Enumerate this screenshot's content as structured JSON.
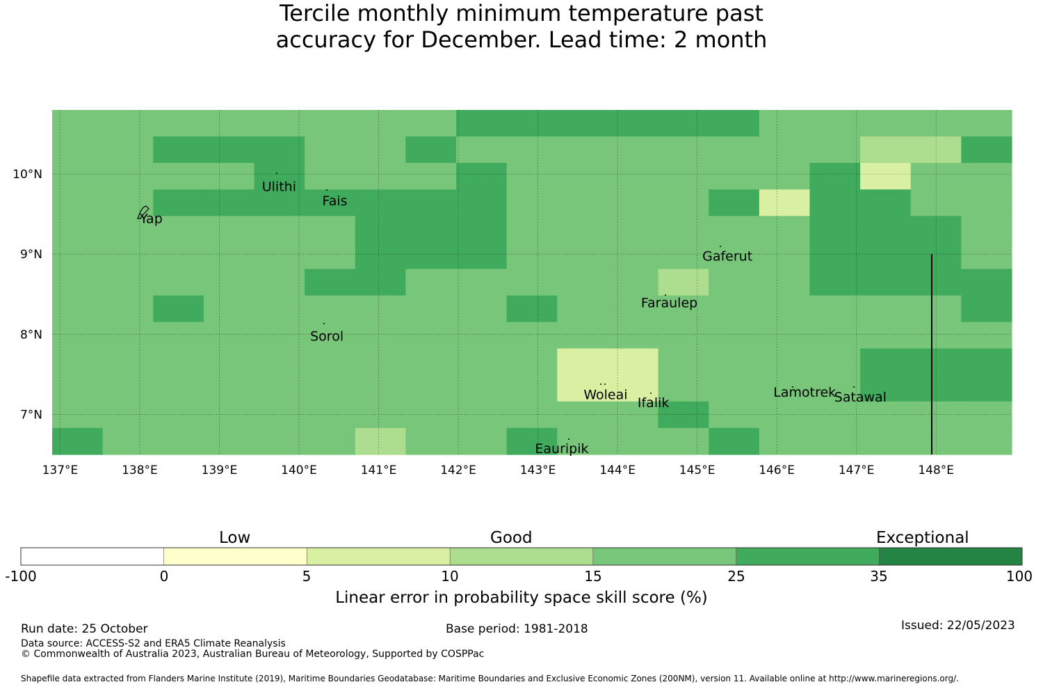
{
  "title": {
    "line1": "Tercile monthly minimum temperature past",
    "line2": "accuracy for December. Lead time: 2 month"
  },
  "map": {
    "lon_labels": [
      "137°E",
      "138°E",
      "139°E",
      "140°E",
      "141°E",
      "142°E",
      "143°E",
      "144°E",
      "145°E",
      "146°E",
      "147°E",
      "148°E"
    ],
    "lat_labels": [
      "10°N",
      "9°N",
      "8°N",
      "7°N"
    ],
    "places": [
      {
        "name": "Yap"
      },
      {
        "name": "Ulithi"
      },
      {
        "name": "Fais"
      },
      {
        "name": "Gaferut"
      },
      {
        "name": "Faraulep"
      },
      {
        "name": "Sorol"
      },
      {
        "name": "Woleai"
      },
      {
        "name": "Ifalik"
      },
      {
        "name": "Lamotrek"
      },
      {
        "name": "Satawal"
      },
      {
        "name": "Eauripik"
      }
    ],
    "colors": {
      "c0": "#ffffcc",
      "c1": "#d9f0a3",
      "c2": "#addd8e",
      "c3": "#78c679",
      "c4": "#41ab5d",
      "c5": "#238443"
    },
    "grid_rows": [
      "3333333344444433333",
      "3344433433333333224",
      "3333433343333334133",
      "3344444443333414433",
      "3333334443333334443",
      "3333334443333334443",
      "3333344333332334444",
      "3343333334333333334",
      "3333333333333333333",
      "3333333333113333444",
      "3333333333113333444",
      "3333333333334333333",
      "4333332334333433333"
    ]
  },
  "colorbar": {
    "categories": [
      "Low",
      "Good",
      "Exceptional"
    ],
    "ticks": [
      "-100",
      "0",
      "5",
      "10",
      "15",
      "25",
      "35",
      "100"
    ],
    "colors": [
      "#ffffff",
      "#ffffcc",
      "#d9f0a3",
      "#addd8e",
      "#78c679",
      "#41ab5d",
      "#238443"
    ],
    "title": "Linear error in probability space skill score (%)"
  },
  "footer": {
    "run_date": "Run date: 25 October",
    "base_period": "Base period: 1981-2018",
    "issued": "Issued: 22/05/2023",
    "data_source": "Data source: ACCESS-S2 and ERA5 Climate Reanalysis",
    "copyright": "© Commonwealth of Australia 2023, Australian Bureau of Meteorology, Supported by COSPPac",
    "shapefile": "Shapefile data extracted from Flanders Marine Institute (2019), Maritime Boundaries Geodatabase: Maritime Boundaries and Exclusive Economic Zones (200NM), version 11. Available online at http://www.marineregions.org/."
  }
}
